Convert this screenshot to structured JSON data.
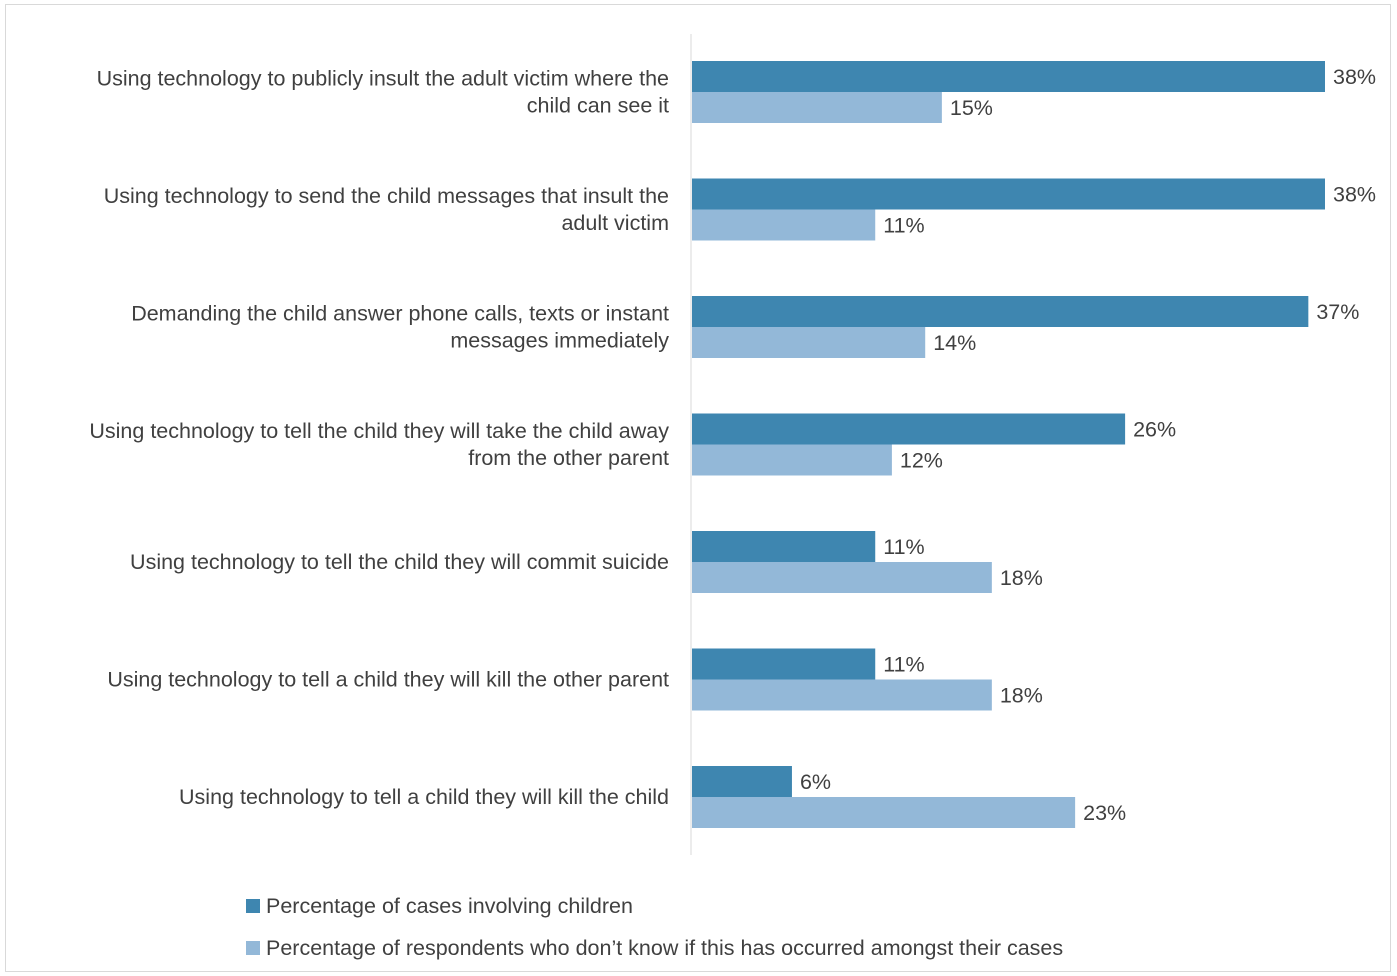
{
  "chart_data": {
    "type": "bar",
    "orientation": "horizontal",
    "categories": [
      [
        "Using technology to publicly insult the adult victim where the",
        "child can see it"
      ],
      [
        "Using technology to send the child messages that insult the",
        "adult victim"
      ],
      [
        "Demanding the child answer phone calls, texts or instant",
        "messages immediately"
      ],
      [
        "Using technology to tell the child they will take the child away",
        "from the other parent"
      ],
      [
        "Using technology to tell the child they will commit suicide"
      ],
      [
        "Using technology to tell a child they will kill the other parent"
      ],
      [
        "Using technology to tell a child they will kill the child"
      ]
    ],
    "series": [
      {
        "name": "Percentage of cases involving children",
        "color": "#3e86b0",
        "values": [
          38,
          38,
          37,
          26,
          11,
          11,
          6
        ],
        "labels": [
          "38%",
          "38%",
          "37%",
          "26%",
          "11%",
          "11%",
          "6%"
        ]
      },
      {
        "name": "Percentage of respondents who don’t know if this has occurred amongst their cases",
        "color": "#93b8d8",
        "values": [
          15,
          11,
          14,
          12,
          18,
          18,
          23
        ],
        "labels": [
          "15%",
          "11%",
          "14%",
          "12%",
          "18%",
          "18%",
          "23%"
        ]
      }
    ],
    "xlim": [
      0,
      38
    ],
    "axis_color": "#d9d9d9",
    "grid": false,
    "legend_position": "bottom"
  }
}
